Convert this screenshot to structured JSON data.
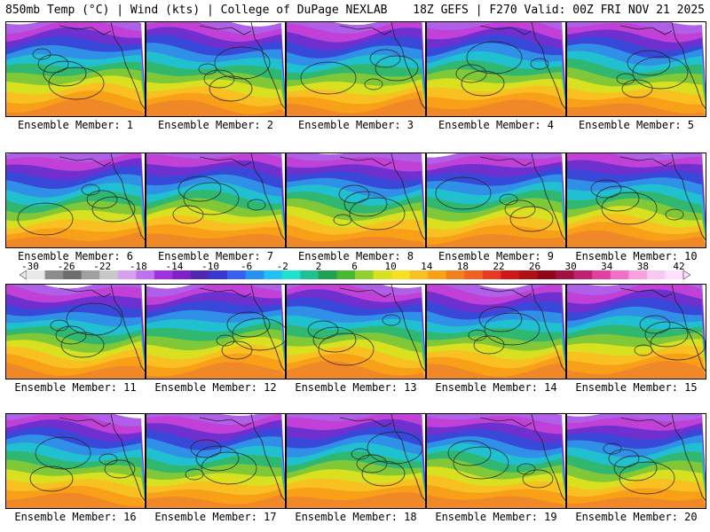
{
  "header": {
    "title_left": "850mb Temp (°C) | Wind (kts) | College of DuPage NEXLAB",
    "title_right": "18Z GEFS | F270 Valid: 00Z FRI NOV 21 2025"
  },
  "panels": [
    {
      "label": "Ensemble Member: 1"
    },
    {
      "label": "Ensemble Member: 2"
    },
    {
      "label": "Ensemble Member: 3"
    },
    {
      "label": "Ensemble Member: 4"
    },
    {
      "label": "Ensemble Member: 5"
    },
    {
      "label": "Ensemble Member: 6"
    },
    {
      "label": "Ensemble Member: 7"
    },
    {
      "label": "Ensemble Member: 8"
    },
    {
      "label": "Ensemble Member: 9"
    },
    {
      "label": "Ensemble Member: 10"
    },
    {
      "label": "Ensemble Member: 11"
    },
    {
      "label": "Ensemble Member: 12"
    },
    {
      "label": "Ensemble Member: 13"
    },
    {
      "label": "Ensemble Member: 14"
    },
    {
      "label": "Ensemble Member: 15"
    },
    {
      "label": "Ensemble Member: 16"
    },
    {
      "label": "Ensemble Member: 17"
    },
    {
      "label": "Ensemble Member: 18"
    },
    {
      "label": "Ensemble Member: 19"
    },
    {
      "label": "Ensemble Member: 20"
    }
  ],
  "colorbar": {
    "ticks": [
      "-30",
      "-26",
      "-22",
      "-18",
      "-14",
      "-10",
      "-6",
      "-2",
      "2",
      "6",
      "10",
      "14",
      "18",
      "22",
      "26",
      "30",
      "34",
      "38",
      "42"
    ],
    "colors": [
      "#e8e8e8",
      "#8c8c8c",
      "#6e6e6e",
      "#a0a0a0",
      "#c8c8c8",
      "#d8a0f0",
      "#c070f0",
      "#a030e0",
      "#8020c8",
      "#5028b0",
      "#3838d0",
      "#3860f0",
      "#2890f0",
      "#20c0f0",
      "#20e0d0",
      "#20c090",
      "#20a050",
      "#48b830",
      "#90d030",
      "#d8e020",
      "#f8e020",
      "#f8c020",
      "#f8a018",
      "#f08020",
      "#f06020",
      "#e83820",
      "#d01818",
      "#b01010",
      "#900818",
      "#a01040",
      "#c02070",
      "#e040a0",
      "#f070c8",
      "#f8a0e0",
      "#f8c8f0",
      "#ffe0ff"
    ]
  }
}
